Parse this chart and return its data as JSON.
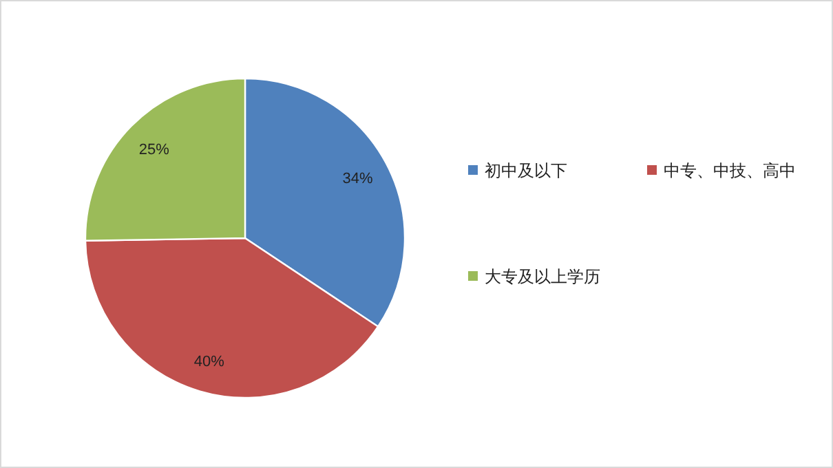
{
  "chart_data": {
    "type": "pie",
    "categories": [
      "初中及以下",
      "中专、中技、高中",
      "大专及以上学历"
    ],
    "values": [
      34,
      40,
      25
    ],
    "colors": [
      "#4f81bd",
      "#c0504d",
      "#9bbb59"
    ],
    "value_labels": [
      "34%",
      "40%",
      "25%"
    ],
    "legend": "right"
  }
}
